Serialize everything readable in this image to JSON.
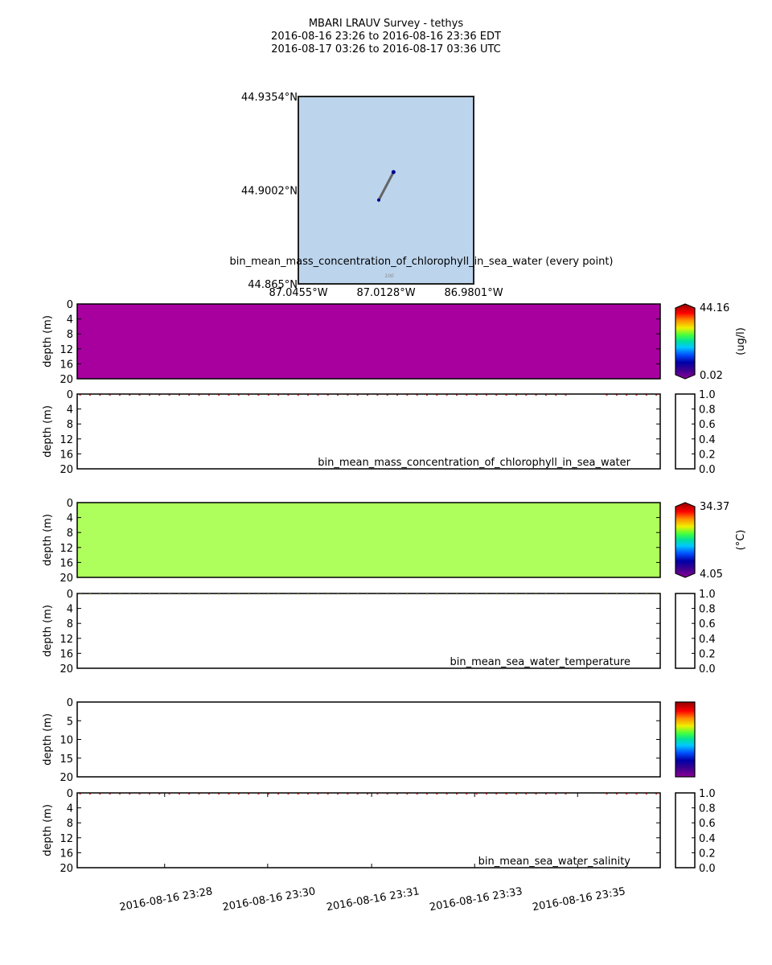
{
  "title": {
    "line1": "MBARI LRAUV Survey - tethys",
    "line2": "2016-08-16 23:26  to  2016-08-16 23:36 EDT",
    "line3": "2016-08-17 03:26  to  2016-08-17 03:36 UTC"
  },
  "chart_data": {
    "type": "multi-panel",
    "map": {
      "title": "bin_mean_mass_concentration_of_chlorophyll_in_sea_water (every point)",
      "lat_range": [
        44.865,
        44.9354
      ],
      "lon_range": [
        -87.0455,
        -86.9801
      ],
      "lat_ticks": [
        "44.9354°N",
        "44.9002°N",
        "44.865°N"
      ],
      "lat_tick_values": [
        44.9354,
        44.9002,
        44.865
      ],
      "lon_ticks": [
        "87.0455°W",
        "87.0128°W",
        "86.9801°W"
      ],
      "lon_tick_values": [
        -87.0455,
        -87.0128,
        -86.9801
      ],
      "track": [
        [
          -87.0155,
          44.8965
        ],
        [
          -87.01,
          44.907
        ]
      ],
      "contour_label": "100",
      "water_color": "#bcd4ec"
    },
    "time_axis": {
      "range_s": [
        0,
        600
      ],
      "tick_values_s": [
        90,
        196,
        303,
        409,
        515
      ],
      "tick_labels": [
        "2016-08-16 23:28",
        "2016-08-16 23:30",
        "2016-08-16 23:31",
        "2016-08-16 23:33",
        "2016-08-16 23:35"
      ]
    },
    "samples": {
      "segments": [
        [
          3,
          505,
          10.2
        ],
        [
          545,
          600,
          10.2
        ]
      ],
      "depth_m": 0.2
    },
    "panels": [
      {
        "kind": "section",
        "ylabel": "depth (m)",
        "ylim": [
          20,
          0
        ],
        "yticks": [
          "0",
          "4",
          "8",
          "12",
          "16",
          "20"
        ],
        "fill": "#a8009f",
        "colorbar": {
          "max": "44.16",
          "min": "0.02",
          "unit": "(ug/l)",
          "extend": true
        }
      },
      {
        "kind": "profile",
        "ylabel": "depth (m)",
        "ylim": [
          20,
          0
        ],
        "yticks": [
          "0",
          "4",
          "8",
          "12",
          "16",
          "20"
        ],
        "label": "bin_mean_mass_concentration_of_chlorophyll_in_sea_water",
        "dot_color": "#b02020",
        "colorbar": {
          "ticks": [
            "1.0",
            "0.8",
            "0.6",
            "0.4",
            "0.2",
            "0.0"
          ]
        }
      },
      {
        "kind": "section",
        "ylabel": "depth (m)",
        "ylim": [
          20,
          0
        ],
        "yticks": [
          "0",
          "4",
          "8",
          "12",
          "16",
          "20"
        ],
        "fill": "#afff5c",
        "colorbar": {
          "max": "34.37",
          "min": "4.05",
          "unit": "(°C)",
          "extend": true
        }
      },
      {
        "kind": "profile",
        "ylabel": "depth (m)",
        "ylim": [
          20,
          0
        ],
        "yticks": [
          "0",
          "4",
          "8",
          "12",
          "16",
          "20"
        ],
        "label": "bin_mean_sea_water_temperature",
        "dot_color": "#d8e0a0",
        "colorbar": {
          "ticks": [
            "1.0",
            "0.8",
            "0.6",
            "0.4",
            "0.2",
            "0.0"
          ]
        }
      },
      {
        "kind": "section",
        "ylabel": "depth (m)",
        "ylim": [
          20,
          0
        ],
        "yticks": [
          "0",
          "5",
          "10",
          "15",
          "20"
        ],
        "fill": "#ffffff",
        "colorbar": {
          "extend": false
        }
      },
      {
        "kind": "profile",
        "ylabel": "depth (m)",
        "ylim": [
          20,
          0
        ],
        "yticks": [
          "0",
          "4",
          "8",
          "12",
          "16",
          "20"
        ],
        "label": "bin_mean_sea_water_salinity",
        "dot_color": "#c02020",
        "xaxis": true,
        "colorbar": {
          "ticks": [
            "1.0",
            "0.8",
            "0.6",
            "0.4",
            "0.2",
            "0.0"
          ]
        }
      }
    ]
  }
}
